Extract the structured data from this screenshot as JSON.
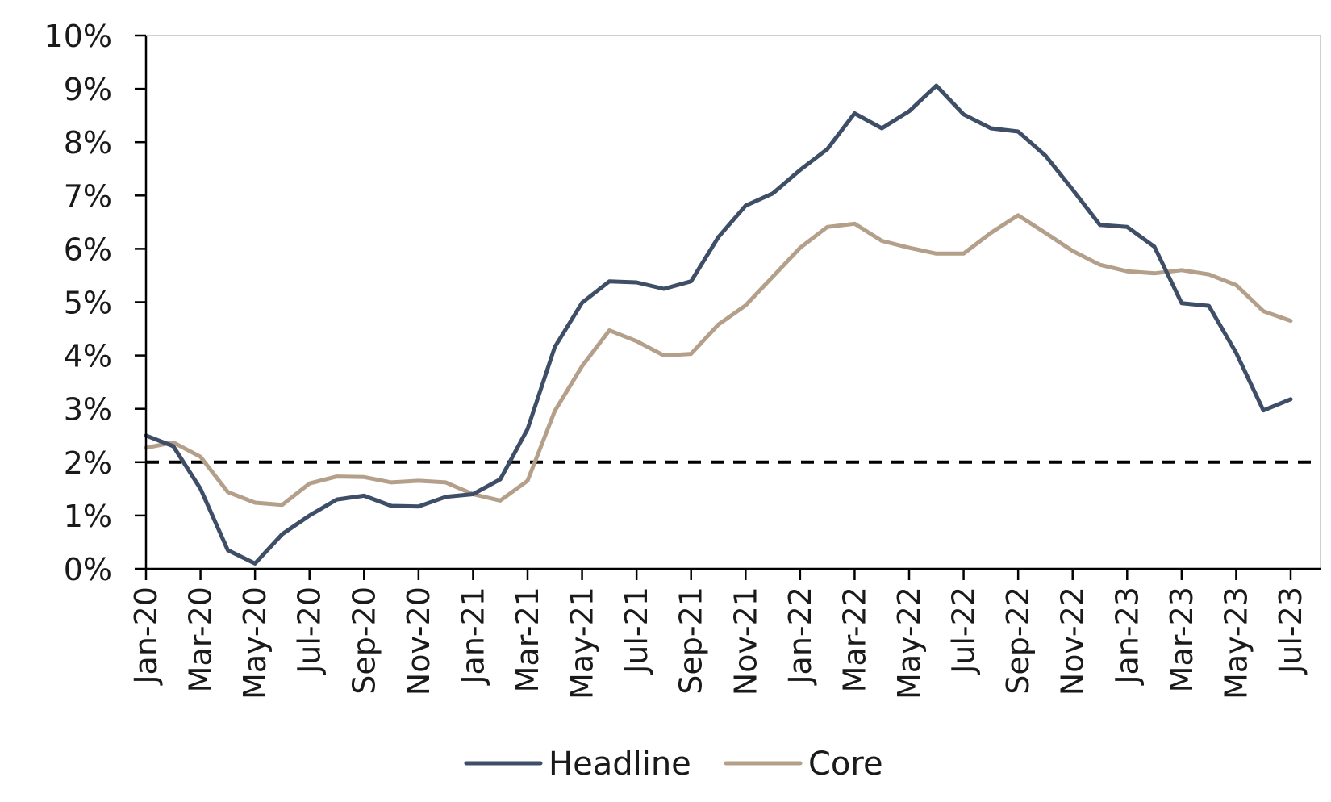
{
  "chart_data": {
    "type": "line",
    "title": "",
    "xlabel": "",
    "ylabel": "",
    "ylim": [
      0,
      10
    ],
    "y_ticks": [
      0,
      1,
      2,
      3,
      4,
      5,
      6,
      7,
      8,
      9,
      10
    ],
    "y_tick_labels": [
      "0%",
      "1%",
      "2%",
      "3%",
      "4%",
      "5%",
      "6%",
      "7%",
      "8%",
      "9%",
      "10%"
    ],
    "x": [
      "Jan-20",
      "Feb-20",
      "Mar-20",
      "Apr-20",
      "May-20",
      "Jun-20",
      "Jul-20",
      "Aug-20",
      "Sep-20",
      "Oct-20",
      "Nov-20",
      "Dec-20",
      "Jan-21",
      "Feb-21",
      "Mar-21",
      "Apr-21",
      "May-21",
      "Jun-21",
      "Jul-21",
      "Aug-21",
      "Sep-21",
      "Oct-21",
      "Nov-21",
      "Dec-21",
      "Jan-22",
      "Feb-22",
      "Mar-22",
      "Apr-22",
      "May-22",
      "Jun-22",
      "Jul-22",
      "Aug-22",
      "Sep-22",
      "Oct-22",
      "Nov-22",
      "Dec-22",
      "Jan-23",
      "Feb-23",
      "Mar-23",
      "Apr-23",
      "May-23",
      "Jun-23",
      "Jul-23"
    ],
    "x_tick_labels": [
      "Jan-20",
      "Mar-20",
      "May-20",
      "Jul-20",
      "Sep-20",
      "Nov-20",
      "Jan-21",
      "Mar-21",
      "May-21",
      "Jul-21",
      "Sep-21",
      "Nov-21",
      "Jan-22",
      "Mar-22",
      "May-22",
      "Jul-22",
      "Sep-22",
      "Nov-22",
      "Jan-23",
      "Mar-23",
      "May-23",
      "Jul-23"
    ],
    "series": [
      {
        "name": "Headline",
        "color": "#3d4e66",
        "values": [
          2.5,
          2.3,
          1.5,
          0.35,
          0.1,
          0.65,
          1.0,
          1.3,
          1.37,
          1.18,
          1.17,
          1.35,
          1.4,
          1.68,
          2.62,
          4.16,
          4.99,
          5.39,
          5.37,
          5.25,
          5.39,
          6.22,
          6.81,
          7.04,
          7.48,
          7.87,
          8.54,
          8.26,
          8.58,
          9.06,
          8.52,
          8.26,
          8.2,
          7.75,
          7.11,
          6.45,
          6.41,
          6.04,
          4.98,
          4.93,
          4.05,
          2.97,
          3.18
        ]
      },
      {
        "name": "Core",
        "color": "#b4a08a",
        "values": [
          2.27,
          2.37,
          2.1,
          1.44,
          1.24,
          1.2,
          1.6,
          1.73,
          1.72,
          1.62,
          1.65,
          1.62,
          1.4,
          1.28,
          1.65,
          2.96,
          3.8,
          4.47,
          4.27,
          4.0,
          4.03,
          4.58,
          4.94,
          5.48,
          6.02,
          6.41,
          6.47,
          6.15,
          6.02,
          5.91,
          5.91,
          6.3,
          6.63,
          6.3,
          5.96,
          5.7,
          5.58,
          5.54,
          5.6,
          5.52,
          5.32,
          4.83,
          4.65
        ]
      }
    ],
    "reference_line": {
      "y": 2,
      "style": "dashed",
      "color": "#000000"
    },
    "grid": false,
    "legend": {
      "placement": "bottom-center"
    }
  },
  "colors": {
    "axis": "#000000",
    "frame": "#bfbfbf"
  }
}
